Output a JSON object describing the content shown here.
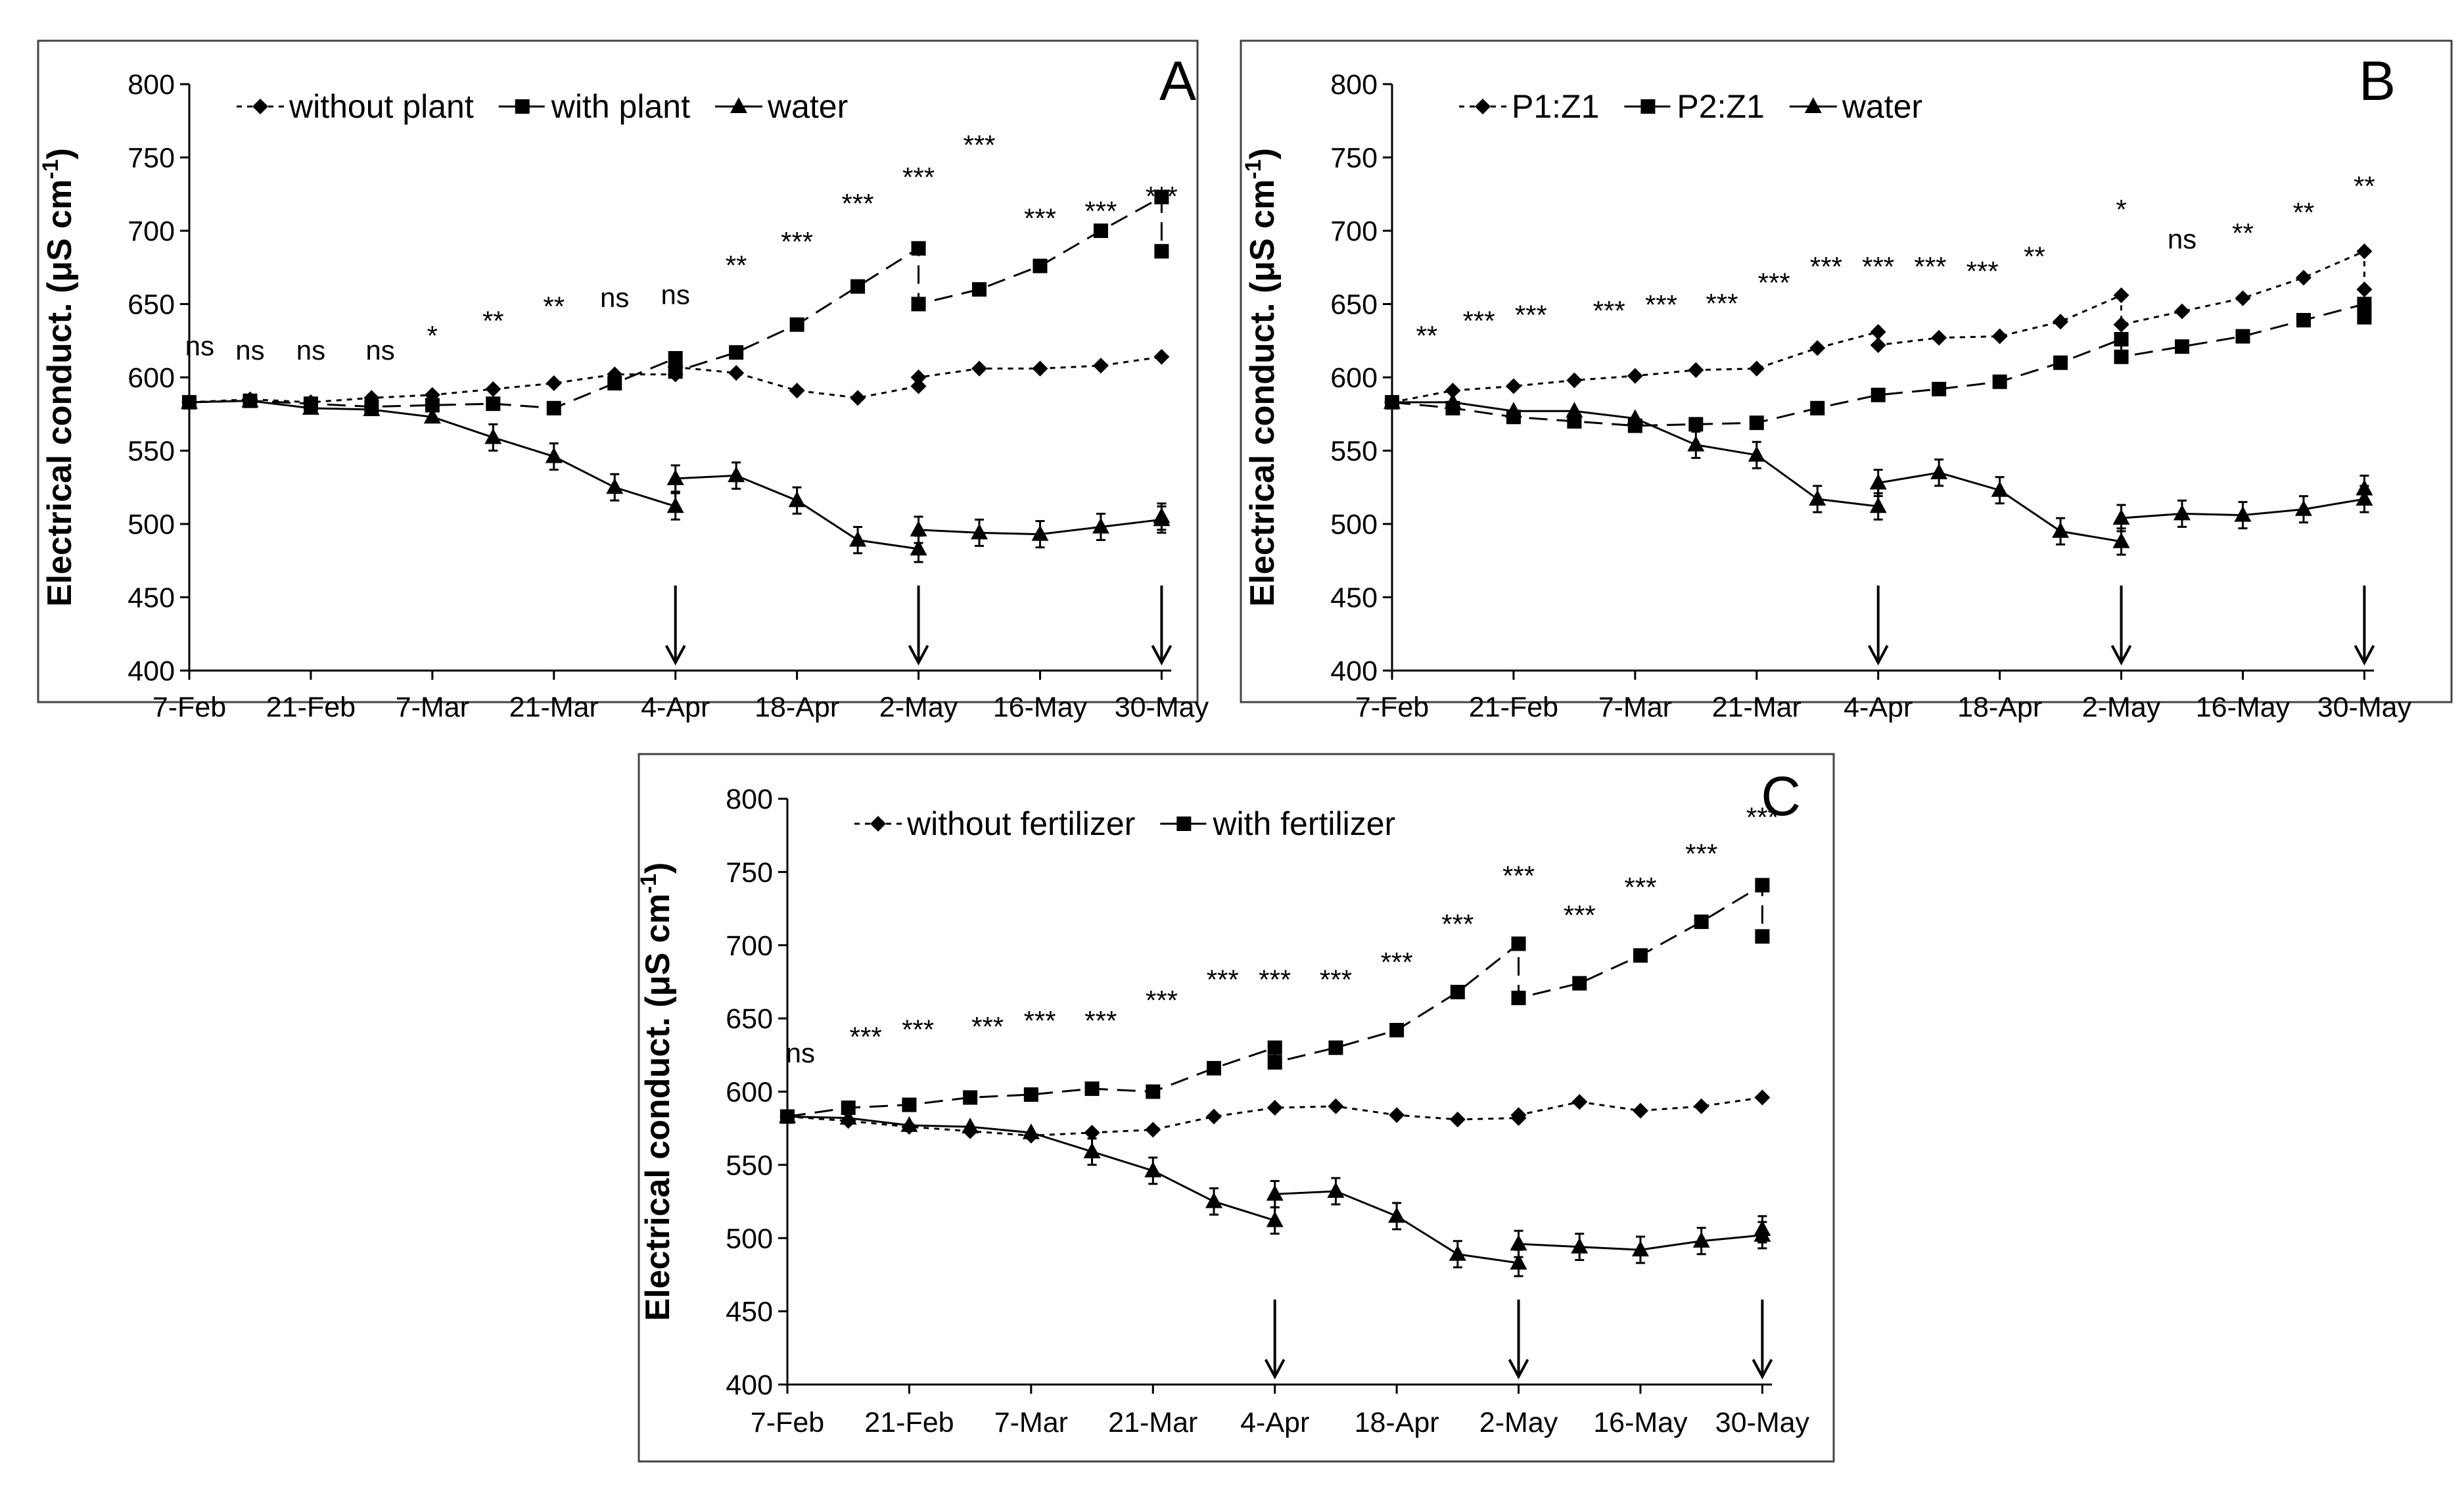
{
  "chart_data": [
    {
      "type": "line",
      "panel": "A",
      "title": "",
      "xlabel": "",
      "ylabel": "Electrical conduct. (μS cm",
      "ylabel_sup": "-1",
      "ylabel_close": ")",
      "ylim": [
        400,
        800
      ],
      "yticks": [
        "400",
        "450",
        "500",
        "550",
        "600",
        "650",
        "700",
        "750",
        "800"
      ],
      "xticks": [
        "7-Feb",
        "21-Feb",
        "7-Mar",
        "21-Mar",
        "4-Apr",
        "18-Apr",
        "2-May",
        "16-May",
        "30-May"
      ],
      "legend": [
        "without plant",
        "with plant",
        "water"
      ],
      "arrows_at_day": [
        56,
        84,
        112
      ],
      "series": [
        {
          "name": "without plant",
          "marker": "diamond",
          "dash": "dot",
          "x": [
            0,
            7,
            14,
            21,
            28,
            35,
            42,
            49,
            56,
            56,
            63,
            70,
            77,
            84,
            84,
            91,
            98,
            105,
            112
          ],
          "y": [
            583,
            585,
            583,
            586,
            588,
            592,
            596,
            602,
            602,
            607,
            603,
            591,
            586,
            594,
            600,
            606,
            606,
            608,
            614
          ]
        },
        {
          "name": "with plant",
          "marker": "square",
          "dash": "dash",
          "x": [
            0,
            7,
            14,
            21,
            28,
            35,
            42,
            49,
            56,
            56,
            63,
            70,
            77,
            84,
            84,
            91,
            98,
            105,
            112,
            112
          ],
          "y": [
            583,
            584,
            582,
            580,
            581,
            582,
            579,
            596,
            613,
            604,
            617,
            636,
            662,
            688,
            650,
            660,
            676,
            700,
            723,
            686
          ]
        },
        {
          "name": "water",
          "marker": "triangle",
          "dash": "solid",
          "x": [
            0,
            7,
            14,
            21,
            28,
            35,
            42,
            49,
            56,
            56,
            63,
            70,
            77,
            84,
            84,
            91,
            98,
            105,
            112,
            112
          ],
          "y": [
            583,
            584,
            579,
            578,
            573,
            559,
            546,
            525,
            512,
            531,
            533,
            516,
            489,
            483,
            496,
            494,
            493,
            498,
            503,
            505
          ]
        }
      ],
      "significance": [
        {
          "x": 1.2,
          "label": "ns"
        },
        {
          "x": 7,
          "label": "ns"
        },
        {
          "x": 14,
          "label": "ns"
        },
        {
          "x": 22,
          "label": "ns"
        },
        {
          "x": 28,
          "label": "*"
        },
        {
          "x": 35,
          "label": "**"
        },
        {
          "x": 42,
          "label": "**"
        },
        {
          "x": 49,
          "label": "ns"
        },
        {
          "x": 56,
          "label": "ns"
        },
        {
          "x": 63,
          "label": "**"
        },
        {
          "x": 70,
          "label": "***"
        },
        {
          "x": 77,
          "label": "***"
        },
        {
          "x": 84,
          "label": "***"
        },
        {
          "x": 91,
          "label": "***"
        },
        {
          "x": 98,
          "label": "***"
        },
        {
          "x": 105,
          "label": "***"
        },
        {
          "x": 112,
          "label": "***"
        }
      ],
      "sig_y": [
        615,
        612,
        612,
        612,
        622,
        632,
        642,
        648,
        650,
        670,
        686,
        712,
        730,
        752,
        702,
        707,
        717,
        732,
        753
      ]
    },
    {
      "type": "line",
      "panel": "B",
      "title": "",
      "xlabel": "",
      "ylabel": "Electrical conduct. (μS cm",
      "ylabel_sup": "-1",
      "ylabel_close": ")",
      "ylim": [
        400,
        800
      ],
      "yticks": [
        "400",
        "450",
        "500",
        "550",
        "600",
        "650",
        "700",
        "750",
        "800"
      ],
      "xticks": [
        "7-Feb",
        "21-Feb",
        "7-Mar",
        "21-Mar",
        "4-Apr",
        "18-Apr",
        "2-May",
        "16-May",
        "30-May"
      ],
      "legend": [
        "P1:Z1",
        "P2:Z1",
        "water"
      ],
      "arrows_at_day": [
        56,
        84,
        112
      ],
      "series": [
        {
          "name": "P1:Z1",
          "marker": "diamond",
          "dash": "dot",
          "x": [
            0,
            7,
            14,
            21,
            28,
            35,
            42,
            49,
            56,
            56,
            63,
            70,
            77,
            84,
            84,
            91,
            98,
            105,
            112,
            112
          ],
          "y": [
            583,
            591,
            594,
            598,
            601,
            605,
            606,
            620,
            631,
            622,
            627,
            628,
            638,
            656,
            636,
            645,
            654,
            668,
            686,
            660
          ]
        },
        {
          "name": "P2:Z1",
          "marker": "square",
          "dash": "dash",
          "x": [
            0,
            7,
            14,
            21,
            28,
            35,
            42,
            49,
            56,
            63,
            70,
            77,
            84,
            84,
            91,
            98,
            105,
            112,
            112
          ],
          "y": [
            583,
            579,
            573,
            570,
            567,
            568,
            569,
            579,
            588,
            592,
            597,
            610,
            626,
            614,
            621,
            628,
            639,
            650,
            641
          ]
        },
        {
          "name": "water",
          "marker": "triangle",
          "dash": "solid",
          "x": [
            0,
            7,
            14,
            21,
            28,
            35,
            42,
            49,
            56,
            56,
            63,
            70,
            77,
            84,
            84,
            91,
            98,
            105,
            112,
            112
          ],
          "y": [
            583,
            583,
            577,
            577,
            572,
            554,
            547,
            517,
            512,
            528,
            535,
            523,
            495,
            488,
            504,
            507,
            506,
            510,
            517,
            524
          ]
        }
      ],
      "significance": [
        {
          "x": 4,
          "label": "**"
        },
        {
          "x": 10,
          "label": "***"
        },
        {
          "x": 16,
          "label": "***"
        },
        {
          "x": 25,
          "label": "***"
        },
        {
          "x": 31,
          "label": "***"
        },
        {
          "x": 38,
          "label": "***"
        },
        {
          "x": 44,
          "label": "***"
        },
        {
          "x": 50,
          "label": "***"
        },
        {
          "x": 56,
          "label": "***"
        },
        {
          "x": 62,
          "label": "***"
        },
        {
          "x": 68,
          "label": "***"
        },
        {
          "x": 74,
          "label": "**"
        },
        {
          "x": 84,
          "label": "*"
        },
        {
          "x": 91,
          "label": "ns"
        },
        {
          "x": 98,
          "label": "**"
        },
        {
          "x": 105,
          "label": "**"
        },
        {
          "x": 112,
          "label": "**"
        }
      ]
    },
    {
      "type": "line",
      "panel": "C",
      "title": "",
      "xlabel": "",
      "ylabel": "Electrical conduct. (μS cm",
      "ylabel_sup": "-1",
      "ylabel_close": ")",
      "ylim": [
        400,
        800
      ],
      "yticks": [
        "400",
        "450",
        "500",
        "550",
        "600",
        "650",
        "700",
        "750",
        "800"
      ],
      "xticks": [
        "7-Feb",
        "21-Feb",
        "7-Mar",
        "21-Mar",
        "4-Apr",
        "18-Apr",
        "2-May",
        "16-May",
        "30-May"
      ],
      "legend": [
        "without fertilizer",
        "with fertilizer"
      ],
      "arrows_at_day": [
        56,
        84,
        112
      ],
      "series": [
        {
          "name": "without fertilizer",
          "marker": "diamond",
          "dash": "dot",
          "x": [
            0,
            7,
            14,
            21,
            28,
            35,
            42,
            49,
            56,
            63,
            70,
            77,
            84,
            84,
            91,
            98,
            105,
            112
          ],
          "y": [
            583,
            580,
            576,
            573,
            570,
            572,
            574,
            583,
            589,
            590,
            584,
            581,
            582,
            584,
            593,
            587,
            590,
            596
          ]
        },
        {
          "name": "with fertilizer",
          "marker": "square",
          "dash": "dash",
          "x": [
            0,
            7,
            14,
            21,
            28,
            35,
            42,
            49,
            56,
            56,
            63,
            70,
            77,
            84,
            84,
            91,
            98,
            105,
            112,
            112
          ],
          "y": [
            583,
            589,
            591,
            596,
            598,
            602,
            600,
            616,
            630,
            620,
            630,
            642,
            668,
            701,
            664,
            674,
            693,
            716,
            741,
            706
          ]
        },
        {
          "name": "water",
          "marker": "triangle",
          "dash": "solid",
          "x": [
            0,
            7,
            14,
            21,
            28,
            35,
            42,
            49,
            56,
            56,
            63,
            70,
            77,
            84,
            84,
            91,
            98,
            105,
            112,
            112
          ],
          "y": [
            583,
            582,
            577,
            576,
            572,
            559,
            546,
            525,
            512,
            530,
            532,
            515,
            489,
            483,
            496,
            494,
            492,
            498,
            502,
            506
          ]
        }
      ],
      "significance": [
        {
          "x": 1.5,
          "label": "ns"
        },
        {
          "x": 9,
          "label": "***"
        },
        {
          "x": 15,
          "label": "***"
        },
        {
          "x": 23,
          "label": "***"
        },
        {
          "x": 29,
          "label": "***"
        },
        {
          "x": 36,
          "label": "***"
        },
        {
          "x": 43,
          "label": "***"
        },
        {
          "x": 50,
          "label": "***"
        },
        {
          "x": 56,
          "label": "***"
        },
        {
          "x": 63,
          "label": "***"
        },
        {
          "x": 70,
          "label": "***"
        },
        {
          "x": 77,
          "label": "***"
        },
        {
          "x": 84,
          "label": "***"
        },
        {
          "x": 91,
          "label": "***"
        },
        {
          "x": 98,
          "label": "***"
        },
        {
          "x": 105,
          "label": "***"
        },
        {
          "x": 112,
          "label": "***"
        }
      ]
    }
  ]
}
